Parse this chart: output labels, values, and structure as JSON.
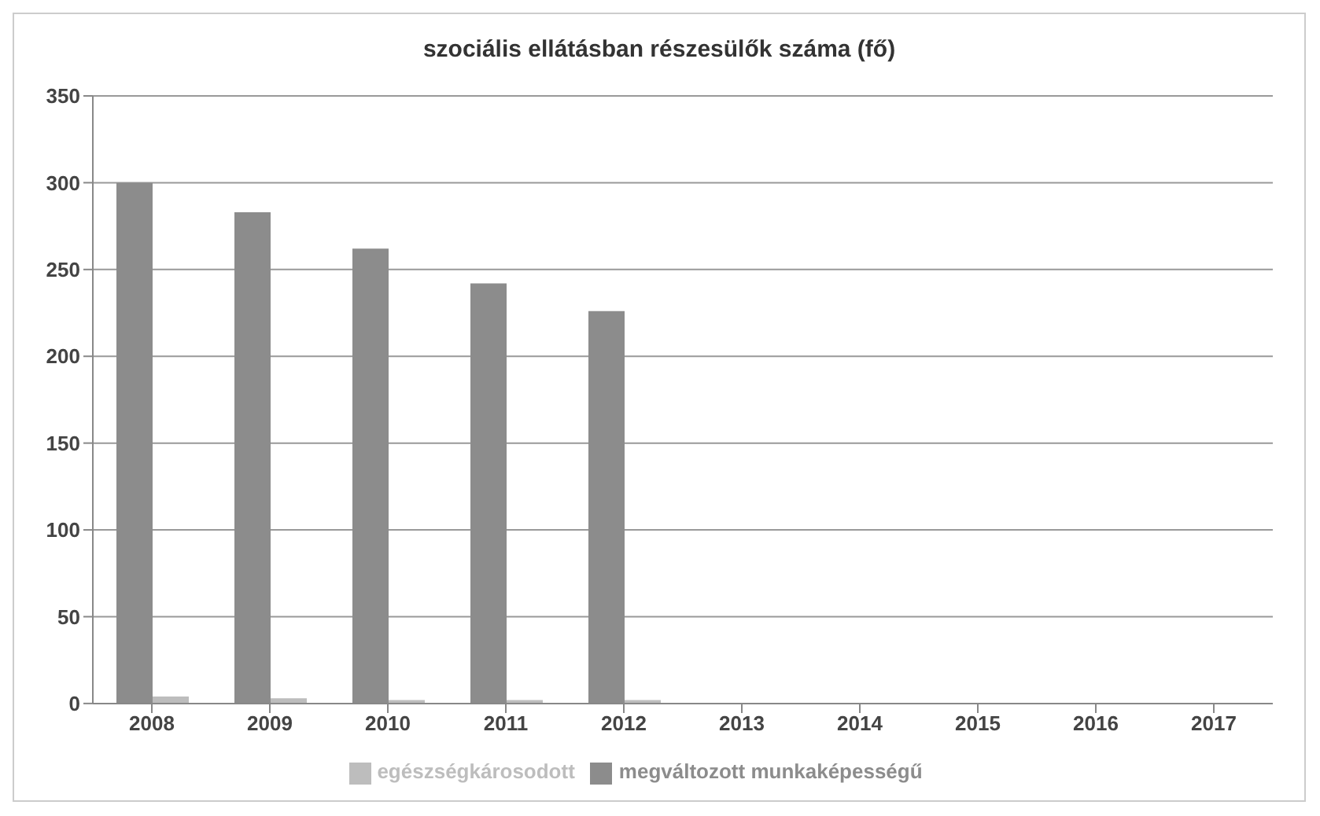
{
  "chart_data": {
    "type": "bar",
    "title": "szociális ellátásban részesülők száma (fő)",
    "categories": [
      "2008",
      "2009",
      "2010",
      "2011",
      "2012",
      "2013",
      "2014",
      "2015",
      "2016",
      "2017"
    ],
    "series": [
      {
        "name": "megváltozott munkaképességű",
        "color": "#8c8c8c",
        "values": [
          300,
          283,
          262,
          242,
          226,
          null,
          null,
          null,
          null,
          null
        ]
      },
      {
        "name": "egészségkárosodott",
        "color": "#bdbdbd",
        "values": [
          4,
          3,
          2,
          2,
          2,
          null,
          null,
          null,
          null,
          null
        ]
      }
    ],
    "ylim": [
      0,
      350
    ],
    "yticks": [
      0,
      50,
      100,
      150,
      200,
      250,
      300,
      350
    ],
    "grid": "y",
    "legend": "bottom"
  }
}
